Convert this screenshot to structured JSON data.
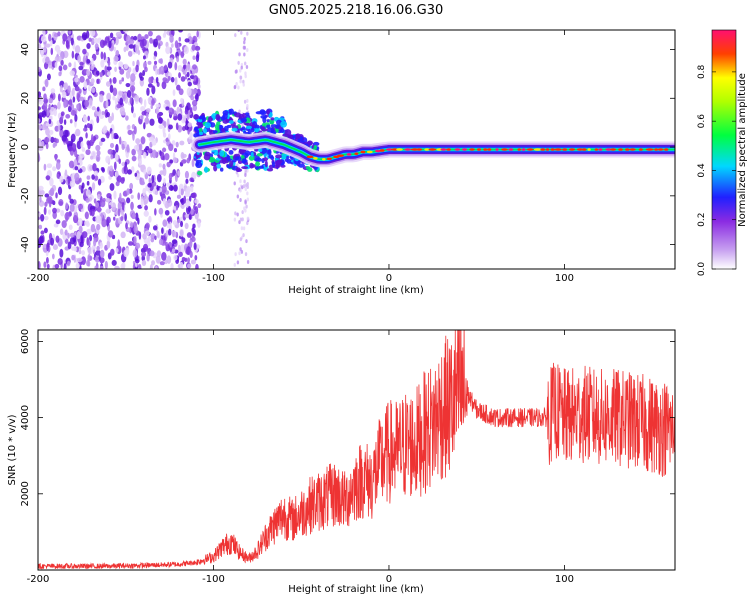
{
  "title": "GN05.2025.218.16.06.G30",
  "chart_data": [
    {
      "type": "heatmap",
      "title": "GN05.2025.218.16.06.G30",
      "xlabel": "Height of straight line (km)",
      "ylabel": "Frequency (Hz)",
      "xlim": [
        -200,
        163
      ],
      "ylim": [
        -50,
        48
      ],
      "x_ticks": [
        -200,
        -100,
        0,
        100
      ],
      "y_ticks": [
        -40,
        -20,
        0,
        20,
        40
      ],
      "colorbar": {
        "label": "Normalized spectral amplitude",
        "range": [
          0,
          0.97
        ],
        "ticks": [
          "0.0",
          "0.2",
          "0.4",
          "0.6",
          "0.8"
        ],
        "colormap": [
          "#ffffff",
          "#8a2be2",
          "#0000ff",
          "#00ffff",
          "#00ff00",
          "#ffff00",
          "#ff0000",
          "#ff1493"
        ]
      },
      "ridge": {
        "x": [
          -108,
          -100,
          -90,
          -80,
          -70,
          -60,
          -50,
          -45,
          -40,
          -35,
          -30,
          -25,
          -20,
          -15,
          -10,
          0,
          10,
          20,
          40,
          60,
          80,
          100,
          120,
          140,
          160
        ],
        "frequency": [
          1,
          2,
          3,
          2,
          3,
          1,
          -2,
          -4,
          -5,
          -5,
          -4,
          -3,
          -3,
          -2,
          -2,
          -1,
          -1,
          -1,
          -1,
          -1,
          -1,
          -1,
          -1,
          -1,
          -1
        ]
      },
      "noise_region_x": [
        -200,
        -108
      ]
    },
    {
      "type": "line",
      "xlabel": "Height of straight line (km)",
      "ylabel": "SNR (10 * v/v)",
      "xlim": [
        -200,
        163
      ],
      "ylim": [
        0,
        6300
      ],
      "x_ticks": [
        -200,
        -100,
        0,
        100
      ],
      "y_ticks": [
        2000,
        4000,
        6000
      ],
      "color": "#ee3333",
      "series": [
        {
          "x": [
            -200,
            -180,
            -160,
            -140,
            -120,
            -110,
            -100,
            -95,
            -90,
            -85,
            -80,
            -75,
            -70,
            -65,
            -60,
            -55,
            -50,
            -45,
            -40,
            -35,
            -30,
            -25,
            -20,
            -15,
            -10,
            -5,
            0,
            5,
            10,
            15,
            20,
            25,
            30,
            35,
            40,
            45,
            50,
            55,
            60,
            70,
            80,
            90,
            95,
            100,
            110,
            120,
            130,
            140,
            150,
            160,
            163
          ],
          "values": [
            100,
            100,
            100,
            120,
            150,
            200,
            350,
            600,
            750,
            450,
            300,
            500,
            900,
            1200,
            1450,
            1300,
            1500,
            1700,
            1800,
            1900,
            2000,
            1800,
            2200,
            2400,
            2300,
            2800,
            3100,
            3100,
            3300,
            3300,
            3600,
            3800,
            4200,
            4300,
            4700,
            4600,
            4200,
            4100,
            4000,
            4000,
            4000,
            4000,
            4200,
            4000,
            4100,
            4000,
            4000,
            3900,
            3800,
            3700,
            3600
          ]
        }
      ]
    }
  ]
}
